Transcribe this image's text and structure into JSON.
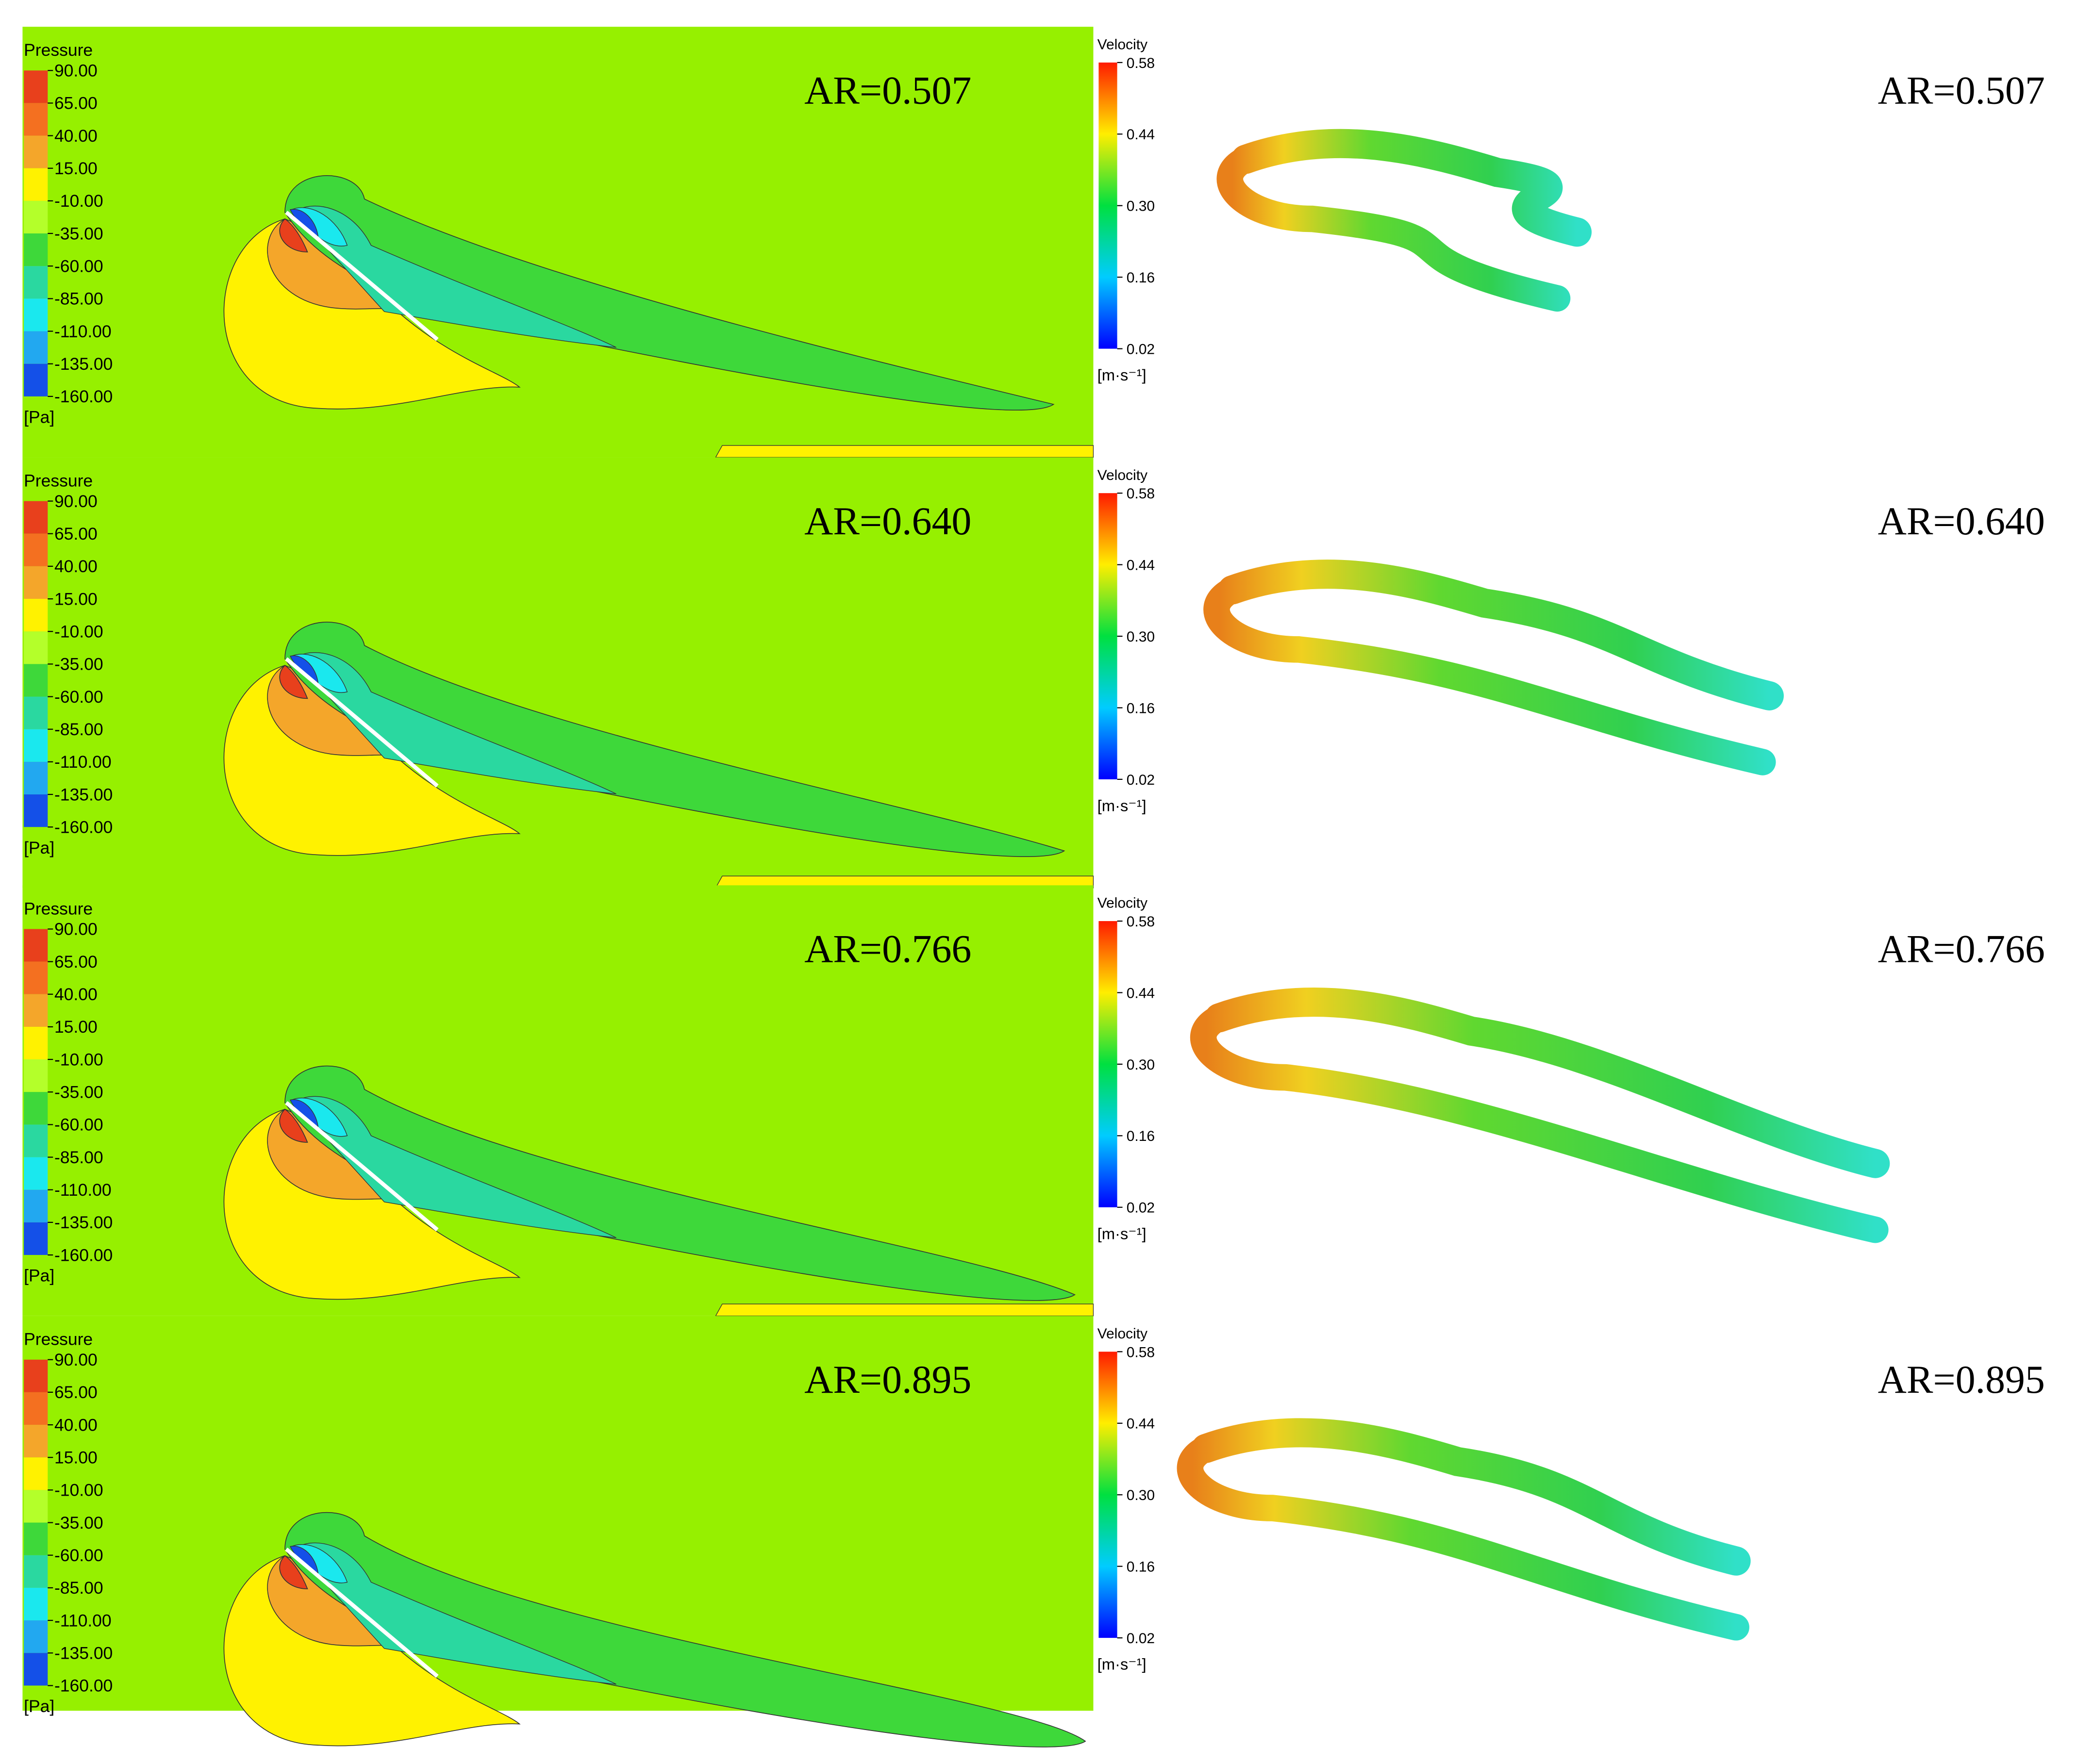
{
  "panels": [
    {
      "pressure_legend": {
        "title": "Pressure",
        "labels": [
          "90.00",
          "65.00",
          "40.00",
          "15.00",
          "-10.00",
          "-35.00",
          "-60.00",
          "-85.00",
          "-110.00",
          "-135.00",
          "-160.00"
        ],
        "unit": "[Pa]"
      },
      "left_label": "AR=0.507",
      "velocity_legend": {
        "title": "Velocity",
        "labels": [
          "0.58",
          "0.44",
          "0.30",
          "0.16",
          "0.02"
        ],
        "unit": "[m·s⁻¹]"
      },
      "right_label": "AR=0.507"
    },
    {
      "pressure_legend": {
        "title": "Pressure",
        "labels": [
          "90.00",
          "65.00",
          "40.00",
          "15.00",
          "-10.00",
          "-35.00",
          "-60.00",
          "-85.00",
          "-110.00",
          "-135.00",
          "-160.00"
        ],
        "unit": "[Pa]"
      },
      "left_label": "AR=0.640",
      "velocity_legend": {
        "title": "Velocity",
        "labels": [
          "0.58",
          "0.44",
          "0.30",
          "0.16",
          "0.02"
        ],
        "unit": "[m·s⁻¹]"
      },
      "right_label": "AR=0.640"
    },
    {
      "pressure_legend": {
        "title": "Pressure",
        "labels": [
          "90.00",
          "65.00",
          "40.00",
          "15.00",
          "-10.00",
          "-35.00",
          "-60.00",
          "-85.00",
          "-110.00",
          "-135.00",
          "-160.00"
        ],
        "unit": "[Pa]"
      },
      "left_label": "AR=0.766",
      "velocity_legend": {
        "title": "Velocity",
        "labels": [
          "0.58",
          "0.44",
          "0.30",
          "0.16",
          "0.02"
        ],
        "unit": "[m·s⁻¹]"
      },
      "right_label": "AR=0.766"
    },
    {
      "pressure_legend": {
        "title": "Pressure",
        "labels": [
          "90.00",
          "65.00",
          "40.00",
          "15.00",
          "-10.00",
          "-35.00",
          "-60.00",
          "-85.00",
          "-110.00",
          "-135.00",
          "-160.00"
        ],
        "unit": "[Pa]"
      },
      "left_label": "AR=0.895",
      "velocity_legend": {
        "title": "Velocity",
        "labels": [
          "0.58",
          "0.44",
          "0.30",
          "0.16",
          "0.02"
        ],
        "unit": "[m·s⁻¹]"
      },
      "right_label": "AR=0.895"
    }
  ]
}
